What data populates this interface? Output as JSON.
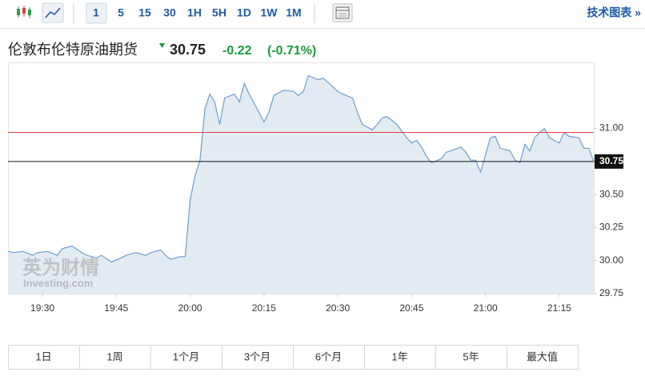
{
  "toolbar": {
    "intervals": [
      "1",
      "5",
      "15",
      "30",
      "1H",
      "5H",
      "1D",
      "1W",
      "1M"
    ],
    "technical_link": "技术图表 »"
  },
  "header": {
    "name": "伦敦布伦特原油期货",
    "price": "30.75",
    "change": "-0.22",
    "change_pct": "(-0.71%)"
  },
  "chart_data": {
    "type": "area",
    "x": [
      "19:23",
      "19:24",
      "19:26",
      "19:28",
      "19:29",
      "19:31",
      "19:33",
      "19:34",
      "19:36",
      "19:38",
      "19:39",
      "19:41",
      "19:42",
      "19:44",
      "19:46",
      "19:47",
      "19:49",
      "19:51",
      "19:52",
      "19:54",
      "19:55",
      "19:56",
      "19:58",
      "19:59",
      "20:00",
      "20:01",
      "20:02",
      "20:03",
      "20:04",
      "20:05",
      "20:06",
      "20:07",
      "20:09",
      "20:10",
      "20:11",
      "20:12",
      "20:13",
      "20:15",
      "20:16",
      "20:17",
      "20:19",
      "20:21",
      "20:22",
      "20:23",
      "20:24",
      "20:26",
      "20:27",
      "20:28",
      "20:30",
      "20:31",
      "20:33",
      "20:34",
      "20:35",
      "20:37",
      "20:38",
      "20:39",
      "20:40",
      "20:42",
      "20:44",
      "20:45",
      "20:46",
      "20:47",
      "20:48",
      "20:49",
      "20:51",
      "20:52",
      "20:53",
      "20:55",
      "20:56",
      "20:57",
      "20:58",
      "20:59",
      "21:01",
      "21:02",
      "21:03",
      "21:05",
      "21:06",
      "21:07",
      "21:08",
      "21:09",
      "21:10",
      "21:11",
      "21:12",
      "21:13",
      "21:15",
      "21:16",
      "21:17",
      "21:19",
      "21:20",
      "21:21",
      "21:22"
    ],
    "values": [
      30.07,
      30.06,
      30.07,
      30.04,
      30.06,
      30.07,
      30.04,
      30.09,
      30.11,
      30.06,
      30.04,
      30.02,
      30.04,
      29.99,
      30.02,
      30.04,
      30.06,
      30.04,
      30.06,
      30.08,
      30.04,
      30.01,
      30.03,
      30.03,
      30.46,
      30.64,
      30.76,
      31.15,
      31.26,
      31.2,
      31.03,
      31.23,
      31.26,
      31.2,
      31.34,
      31.26,
      31.19,
      31.05,
      31.12,
      31.25,
      31.29,
      31.28,
      31.25,
      31.28,
      31.4,
      31.37,
      31.38,
      31.35,
      31.28,
      31.26,
      31.23,
      31.12,
      31.03,
      30.99,
      31.03,
      31.08,
      31.09,
      31.03,
      30.93,
      30.89,
      30.91,
      30.86,
      30.79,
      30.74,
      30.77,
      30.82,
      30.83,
      30.86,
      30.82,
      30.76,
      30.76,
      30.67,
      30.93,
      30.94,
      30.85,
      30.83,
      30.76,
      30.74,
      30.88,
      30.83,
      30.93,
      30.97,
      31.0,
      30.93,
      30.89,
      30.97,
      30.94,
      30.93,
      30.85,
      30.85,
      30.75
    ],
    "color": "#6a9fd0",
    "fill": "#e3ebf2",
    "xlim": [
      "19:23",
      "21:22"
    ],
    "xticks": [
      "19:30",
      "19:45",
      "20:00",
      "20:15",
      "20:30",
      "20:45",
      "21:00",
      "21:15"
    ],
    "ylim": [
      29.75,
      31.5
    ],
    "yticks": [
      29.75,
      {
        "value": 30,
        "label": "30.00"
      },
      30.25,
      {
        "value": 30.5,
        "label": "30.50"
      },
      30.75,
      {
        "value": 31,
        "label": "31.00"
      }
    ],
    "previous_close": {
      "value": 30.97,
      "color": "#d9413c"
    },
    "last_price": {
      "value": 30.75,
      "color": "#111111"
    },
    "watermark": {
      "cn": "英为财情",
      "en": "Investing.com"
    }
  },
  "ranges": [
    "1日",
    "1周",
    "1个月",
    "3个月",
    "6个月",
    "1年",
    "5年",
    "最大值"
  ]
}
